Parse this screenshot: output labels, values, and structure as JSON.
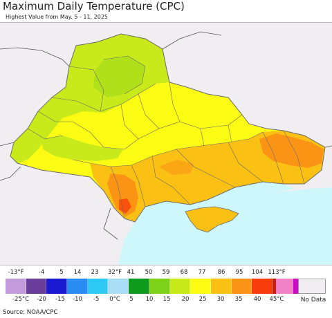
{
  "title": "Maximum Daily Temperature (CPC)",
  "subtitle": "Highest Value from May. 5 - 11, 2025",
  "source": "Source: NOAA/CPC",
  "legend": {
    "fahrenheit_labels": [
      "-13°F",
      "-4",
      "5",
      "14",
      "23",
      "32°F",
      "41",
      "50",
      "59",
      "68",
      "77",
      "86",
      "95",
      "104",
      "113°F"
    ],
    "celsius_labels": [
      "-25°C",
      "-20",
      "-15",
      "-10",
      "-5",
      "0°C",
      "5",
      "10",
      "15",
      "20",
      "25",
      "30",
      "35",
      "40",
      "45°C"
    ],
    "colors": [
      "#c39bdc",
      "#6a3d9a",
      "#1a1ad0",
      "#2a8cf0",
      "#2ec8f5",
      "#a9dcf5",
      "#0f9a1e",
      "#7ed21a",
      "#c8ea1a",
      "#fbfb14",
      "#fbc014",
      "#fb9414",
      "#f83c0a",
      "#c81e0a",
      "#c80ec8",
      "#f082c8"
    ],
    "no_data_label": "No Data",
    "no_data_color": "#f0eef0"
  },
  "map_colors": {
    "outside": "#f0eef0",
    "sea": "#cdf7fb",
    "green_light": "#c8ea1a",
    "green_mid": "#a9de1a",
    "yellow": "#fbfb14",
    "orange_light": "#fbc014",
    "orange": "#fb9414",
    "red": "#f83c0a",
    "border": "#6a6a6a"
  }
}
